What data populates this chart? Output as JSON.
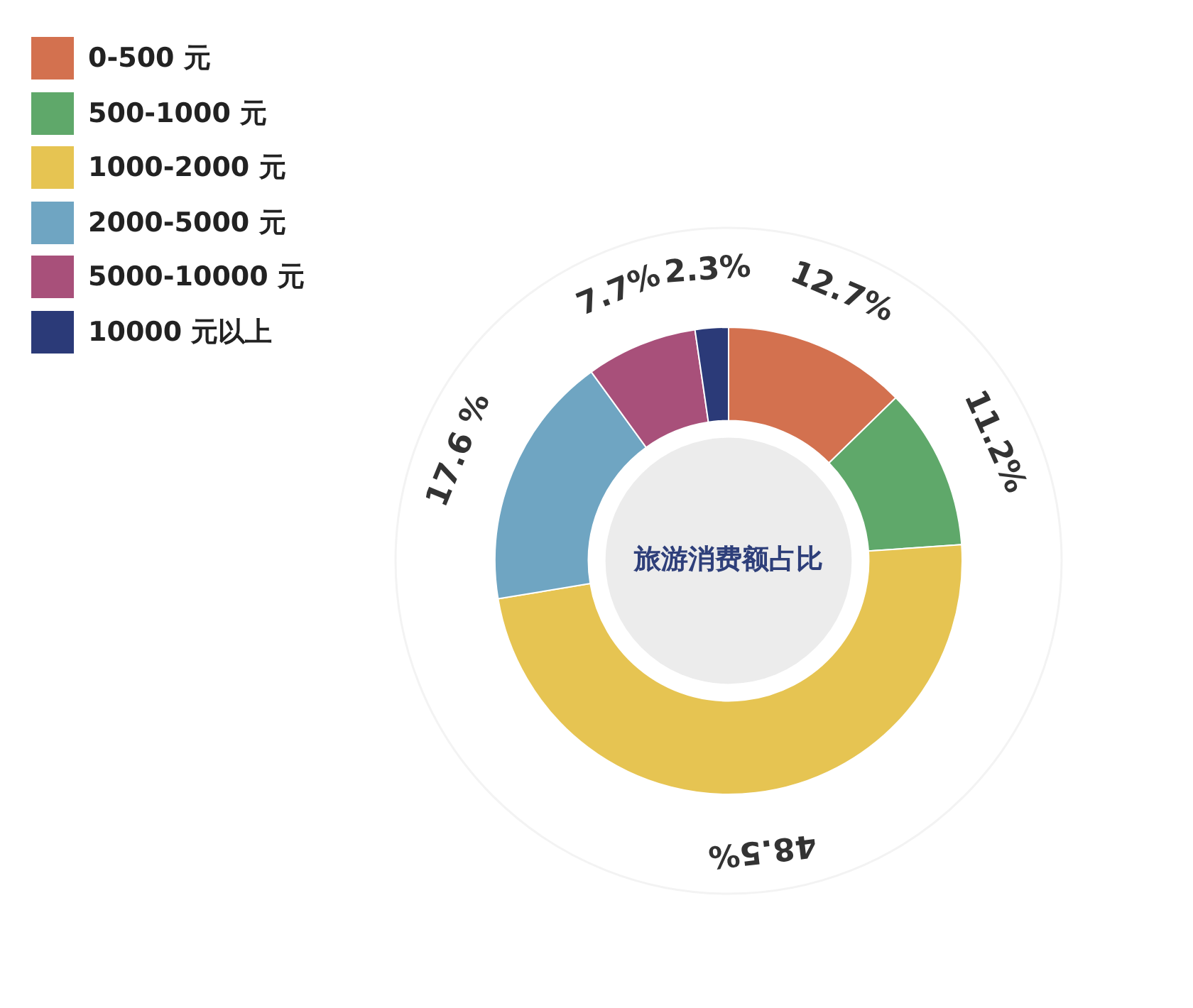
{
  "chart_data": {
    "type": "donut",
    "title": "旅游消费额占比",
    "categories": [
      "0-500 元",
      "500-1000 元",
      "1000-2000 元",
      "2000-5000 元",
      "5000-10000 元",
      "10000 元以上"
    ],
    "values": [
      12.7,
      11.2,
      48.5,
      17.6,
      7.7,
      2.3
    ],
    "colors": [
      "#d3714f",
      "#5fa86a",
      "#e6c452",
      "#6fa5c2",
      "#a8507a",
      "#2b3a78"
    ],
    "value_labels": [
      "12.7%",
      "11.2%",
      "48.5%",
      "17.6 %",
      "7.7%",
      "2.3%"
    ],
    "legend": "top left"
  }
}
